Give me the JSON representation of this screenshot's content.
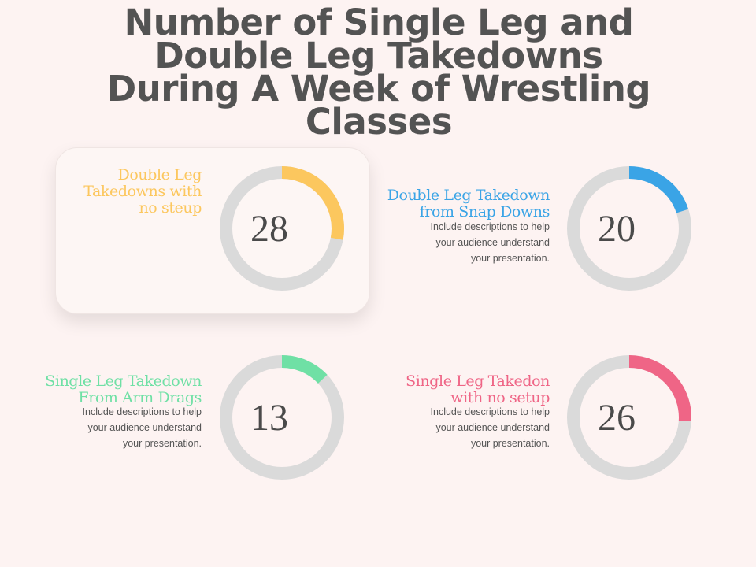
{
  "title": "Number of Single Leg and Double Leg Takedowns During A Week of Wrestling Classes",
  "chart_data": {
    "type": "donut",
    "title": "Number of Single Leg and Double Leg Takedowns During A Week of Wrestling Classes",
    "max": 100,
    "items": [
      {
        "label": "Double Leg Takedowns with no steup",
        "value": 28,
        "value_label": "28",
        "color": "#fcc75e",
        "description": "",
        "highlighted": true
      },
      {
        "label": "Double Leg Takedown from Snap Downs",
        "value": 20,
        "value_label": "20",
        "color": "#3aa4e6",
        "description": "Include descriptions to help\nyour audience understand\nyour presentation.",
        "highlighted": false
      },
      {
        "label": "Single Leg Takedown From Arm Drags",
        "value": 13,
        "value_label": "13",
        "color": "#6fe0a5",
        "description": "Include descriptions to help\nyour audience understand\nyour presentation.",
        "highlighted": false
      },
      {
        "label": "Single Leg Takedon with no setup",
        "value": 26,
        "value_label": "26",
        "color": "#ef6586",
        "description": "Include descriptions to help\nyour audience understand\nyour presentation.",
        "highlighted": false
      }
    ],
    "track_color": "#dadada"
  }
}
